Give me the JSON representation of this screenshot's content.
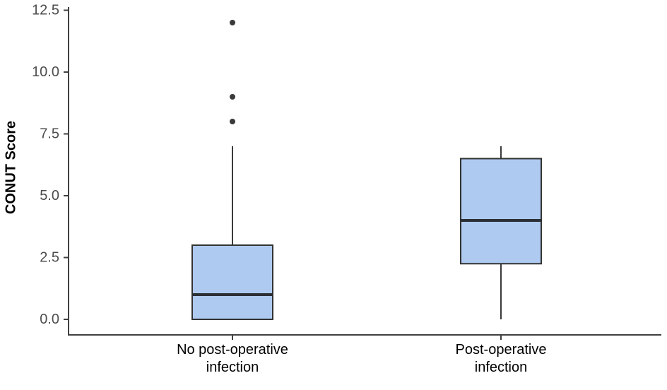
{
  "chart_data": {
    "type": "boxplot",
    "title": "",
    "ylabel": "CONUT Score",
    "xlabel": "",
    "ylim": [
      0,
      12.5
    ],
    "yticks": [
      0,
      2.5,
      5,
      7.5,
      10,
      12.5
    ],
    "ytick_labels": [
      "0.0",
      "2.5",
      "5.0",
      "7.5",
      "10.0",
      "12.5"
    ],
    "categories": [
      "No post-operative\ninfection",
      "Post-operative\ninfection"
    ],
    "grid": "off",
    "legend": "none",
    "series": [
      {
        "name": "No post-operative infection",
        "whisker_low": 0,
        "q1": 0,
        "median": 1,
        "q3": 3,
        "whisker_high": 7,
        "outliers": [
          8,
          9,
          12
        ]
      },
      {
        "name": "Post-operative infection",
        "whisker_low": 0,
        "q1": 2.25,
        "median": 4,
        "q3": 6.5,
        "whisker_high": 7,
        "outliers": []
      }
    ],
    "colors": {
      "box_fill": "#aecaf0",
      "box_border": "#333333",
      "median_line": "#2b2f36",
      "whisker": "#3a3a3a",
      "outlier": "#3a3a3a",
      "axis": "#404040",
      "tick_label": "#4d4d4d",
      "category_label": "#000000",
      "background": "#ffffff"
    }
  }
}
